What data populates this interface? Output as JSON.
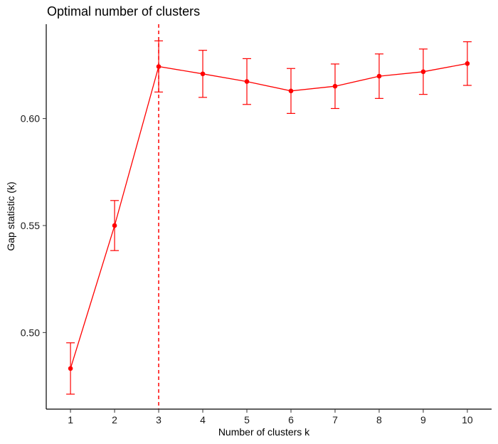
{
  "chart_data": {
    "type": "line",
    "title": "Optimal number of clusters",
    "xlabel": "Number of clusters k",
    "ylabel": "Gap statistic (k)",
    "x": [
      1,
      2,
      3,
      4,
      5,
      6,
      7,
      8,
      9,
      10
    ],
    "x_tick_labels": [
      "1",
      "2",
      "3",
      "4",
      "5",
      "6",
      "7",
      "8",
      "9",
      "10"
    ],
    "series": [
      {
        "name": "gap",
        "values": [
          0.4832,
          0.55,
          0.6243,
          0.6209,
          0.6173,
          0.6129,
          0.6151,
          0.6198,
          0.6219,
          0.6257
        ],
        "error_lower": [
          0.4712,
          0.5383,
          0.6124,
          0.6099,
          0.6066,
          0.6024,
          0.6047,
          0.6094,
          0.6113,
          0.6155
        ],
        "error_upper": [
          0.4952,
          0.5617,
          0.6363,
          0.6319,
          0.628,
          0.6234,
          0.6255,
          0.6302,
          0.6325,
          0.6359
        ],
        "color": "#ff0000"
      }
    ],
    "optimal_k": 3,
    "optimal_line_color": "#ff0000",
    "y_ticks": [
      0.5,
      0.55,
      0.6
    ],
    "y_tick_labels": [
      "0.50",
      "0.55",
      "0.60"
    ],
    "xlim": [
      0.45,
      10.55
    ],
    "ylim": [
      0.4642,
      0.6441
    ],
    "grid": false,
    "legend": "none"
  }
}
